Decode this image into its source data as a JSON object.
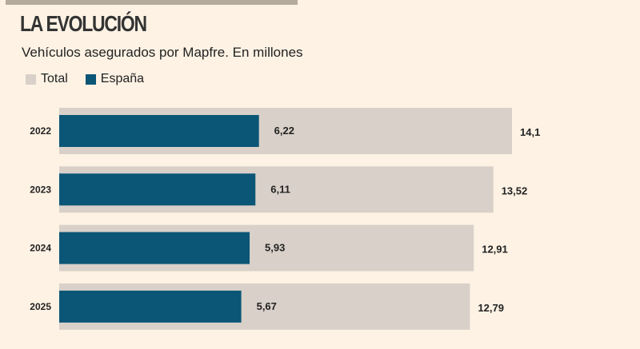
{
  "title": "LA EVOLUCIÓN",
  "subtitle": "Vehículos asegurados por Mapfre. En millones",
  "chart_data": {
    "type": "bar",
    "orientation": "horizontal",
    "title": "LA EVOLUCIÓN",
    "subtitle": "Vehículos asegurados por Mapfre. En millones",
    "categories": [
      "2022",
      "2023",
      "2024",
      "2025"
    ],
    "series": [
      {
        "name": "Total",
        "color": "#d9d1c9",
        "values": [
          14.1,
          13.52,
          12.91,
          12.79
        ],
        "labels": [
          "14,1",
          "13,52",
          "12,91",
          "12,79"
        ]
      },
      {
        "name": "España",
        "color": "#0b5576",
        "values": [
          6.22,
          6.11,
          5.93,
          5.67
        ],
        "labels": [
          "6,22",
          "6,11",
          "5,93",
          "5,67"
        ]
      }
    ],
    "legend": "top-left",
    "grid": false,
    "xlim": [
      0,
      14.1
    ]
  }
}
